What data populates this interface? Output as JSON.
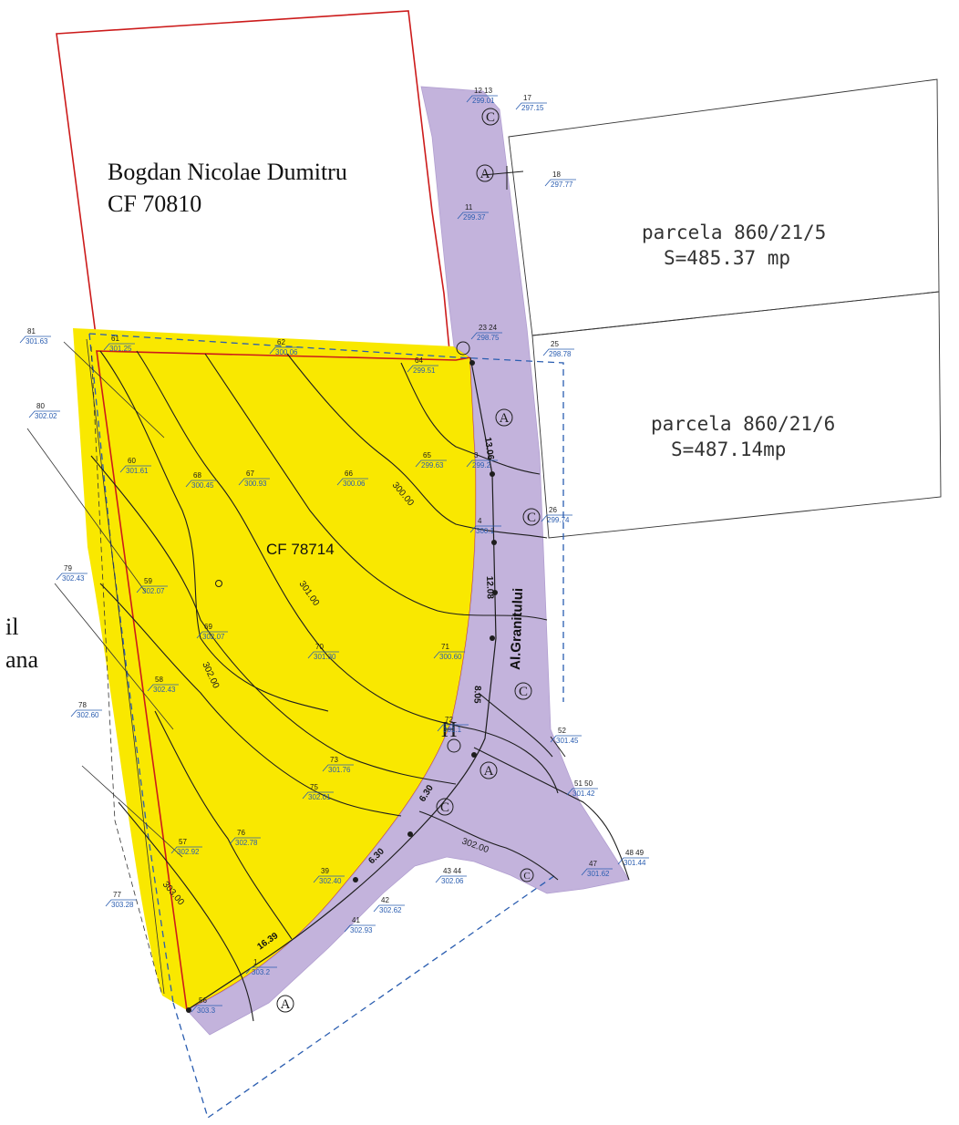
{
  "owners": {
    "name": "Bogdan Nicolae Dumitru",
    "cf": "CF 70810",
    "left_partial_1": "il",
    "left_partial_2": "ana"
  },
  "parcels": {
    "p5_name": "parcela  860/21/5",
    "p5_area": "S=485.37  mp",
    "p6_name": "parcela  860/21/6",
    "p6_area": "S=487.14mp",
    "main_cf": "CF 78714"
  },
  "street": {
    "name": "Al.Granitului"
  },
  "dims": {
    "d1": "13.06",
    "d2": "12.08",
    "d3": "8.05",
    "d4": "6.30",
    "d5": "6.30",
    "d6": "16.39"
  },
  "markers": {
    "a": "A",
    "c": "C",
    "h": "H"
  },
  "contours": [
    "300.00",
    "301.00",
    "302.00",
    "302.00",
    "303.00"
  ],
  "colors": {
    "yellow": "#f9e800",
    "purple": "#c3b3dc",
    "red": "#cc1b1b",
    "blue": "#2a5db0",
    "ink": "#1d1d1d"
  },
  "points": [
    {
      "n": "12 13",
      "v": "299.01"
    },
    {
      "n": "17",
      "v": "297.15"
    },
    {
      "n": "18",
      "v": "297.77"
    },
    {
      "n": "11",
      "v": "299.37"
    },
    {
      "n": "23 24",
      "v": "298.75"
    },
    {
      "n": "25",
      "v": "298.78"
    },
    {
      "n": "81",
      "v": "301.63"
    },
    {
      "n": "61",
      "v": "301.25"
    },
    {
      "n": "62",
      "v": "300.06"
    },
    {
      "n": "64",
      "v": "299.51"
    },
    {
      "n": "80",
      "v": "302.02"
    },
    {
      "n": "60",
      "v": "301.61"
    },
    {
      "n": "68",
      "v": "300.45"
    },
    {
      "n": "67",
      "v": "300.93"
    },
    {
      "n": "66",
      "v": "300.06"
    },
    {
      "n": "65",
      "v": "299.63"
    },
    {
      "n": "3",
      "v": "299.2"
    },
    {
      "n": "26",
      "v": "299.74"
    },
    {
      "n": "79",
      "v": "302.43"
    },
    {
      "n": "59",
      "v": "302.07"
    },
    {
      "n": "4",
      "v": "300.1"
    },
    {
      "n": "69",
      "v": "302.07"
    },
    {
      "n": "70",
      "v": "301.30"
    },
    {
      "n": "71",
      "v": "300.60"
    },
    {
      "n": "58",
      "v": "302.43"
    },
    {
      "n": "78",
      "v": "302.60"
    },
    {
      "n": "72",
      "v": "301.1"
    },
    {
      "n": "52",
      "v": "301.45"
    },
    {
      "n": "73",
      "v": "301.76"
    },
    {
      "n": "75",
      "v": "302.01"
    },
    {
      "n": "51 50",
      "v": "301.42"
    },
    {
      "n": "57",
      "v": "302.92"
    },
    {
      "n": "76",
      "v": "302.78"
    },
    {
      "n": "77",
      "v": "303.28"
    },
    {
      "n": "39",
      "v": "302.40"
    },
    {
      "n": "43 44",
      "v": "302.06"
    },
    {
      "n": "42",
      "v": "302.62"
    },
    {
      "n": "41",
      "v": "302.93"
    },
    {
      "n": "47",
      "v": "301.62"
    },
    {
      "n": "48 49",
      "v": "301.44"
    },
    {
      "n": "1",
      "v": "303.2"
    },
    {
      "n": "56",
      "v": "303.3"
    }
  ]
}
